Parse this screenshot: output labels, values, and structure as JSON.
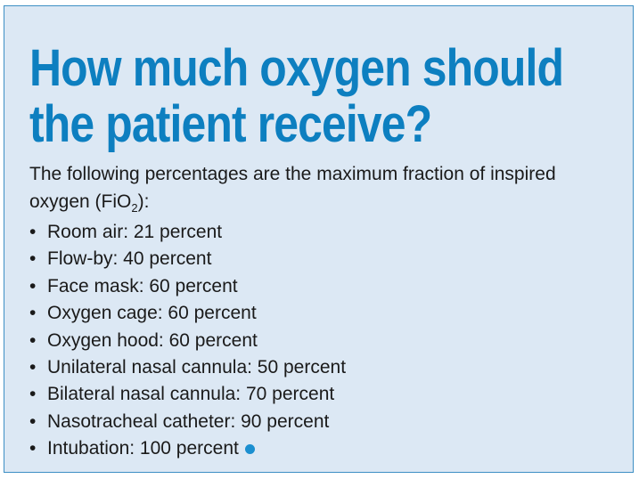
{
  "title": {
    "line1": "How much oxygen should",
    "line2": "the patient receive?"
  },
  "intro": {
    "text_before": "The following percentages are the maximum fraction of inspired oxygen (FiO",
    "subscript": "2",
    "text_after": "):"
  },
  "bullet_glyph": "•",
  "items": [
    "Room air: 21 percent",
    "Flow-by: 40 percent",
    "Face mask: 60 percent",
    "Oxygen cage: 60 percent",
    "Oxygen hood: 60 percent",
    "Unilateral nasal cannula: 50 percent",
    "Bilateral nasal cannula: 70 percent",
    "Nasotracheal catheter: 90 percent",
    "Intubation: 100 percent"
  ],
  "colors": {
    "background": "#dce8f4",
    "border": "#3d8fc4",
    "title": "#0d7fc0",
    "end_dot": "#1b8fd0"
  }
}
